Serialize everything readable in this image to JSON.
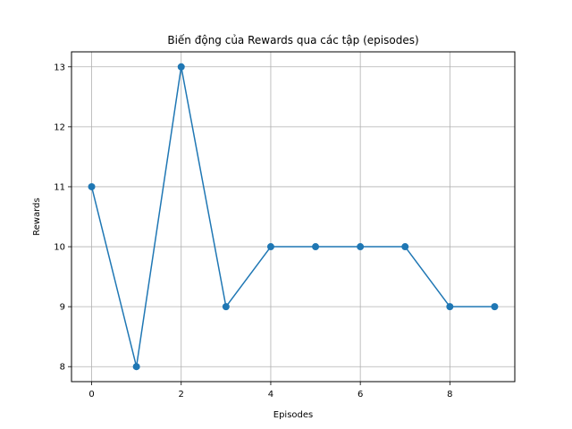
{
  "chart_data": {
    "type": "line",
    "title": "Biến động của Rewards qua các tập (episodes)",
    "xlabel": "Episodes",
    "ylabel": "Rewards",
    "xlim": [
      -0.45,
      9.45
    ],
    "ylim": [
      7.75,
      13.25
    ],
    "xticks": [
      0,
      2,
      4,
      6,
      8
    ],
    "yticks": [
      8,
      9,
      10,
      11,
      12,
      13
    ],
    "grid": true,
    "series": [
      {
        "x": [
          0,
          1,
          2,
          3,
          4,
          5,
          6,
          7,
          8,
          9
        ],
        "y": [
          11,
          8,
          13,
          9,
          10,
          10,
          10,
          10,
          9,
          9
        ],
        "color": "#1f77b4",
        "marker": "circle"
      }
    ]
  }
}
